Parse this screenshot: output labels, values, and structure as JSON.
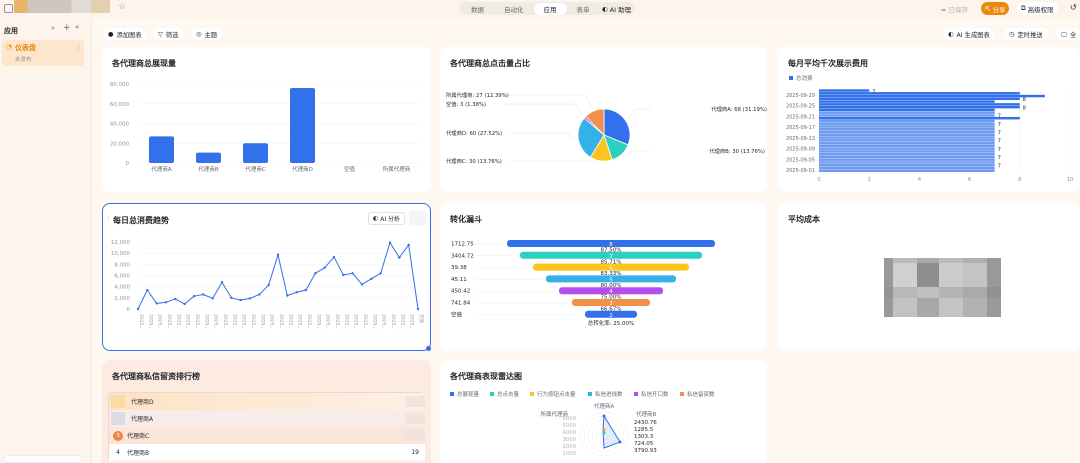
{
  "topbar": {
    "doc_title": "",
    "nav": [
      "数据",
      "自动化",
      "应用",
      "表单"
    ],
    "active_nav": "应用",
    "ai_assistant": "AI 助理",
    "saved": "已保存",
    "share": "分享",
    "advanced_permissions": "高级权限"
  },
  "sidebar": {
    "title": "应用",
    "items": [
      {
        "label": "仪表盘",
        "status": "未发布"
      }
    ]
  },
  "toolbar": {
    "add_chart": "添加图表",
    "filter": "筛选",
    "theme": "主题",
    "ai_generate": "AI 生成图表",
    "scheduled_push": "定时推送",
    "fullscreen": "全"
  },
  "colors": {
    "accent": "#3370eb",
    "share": "#e8890c",
    "page_bg": "#fef8f1"
  },
  "cards": {
    "impressions": "各代理商总展现量",
    "clicks": "各代理商总点击量占比",
    "cpm": "每月平均千次展示费用",
    "daily": "每日总消费趋势",
    "ai_analyze": "AI 分析",
    "funnel": "转化漏斗",
    "avg_cost": "平均成本",
    "ranking": "各代理商私信留资排行榜",
    "radar": "各代理商表现雷达图"
  },
  "chart_data": [
    {
      "type": "bar",
      "title": "各代理商总展现量",
      "categories": [
        "代理商A",
        "代理商B",
        "代理商C",
        "代理商D",
        "空值",
        "所属代理商"
      ],
      "values": [
        27000,
        10500,
        20000,
        76000,
        0,
        0
      ],
      "ylim": [
        0,
        80000
      ],
      "yticks": [
        "0",
        "20,000",
        "40,000",
        "60,000",
        "80,000"
      ],
      "grid": true
    },
    {
      "type": "pie",
      "title": "各代理商总点击量占比",
      "slices": [
        {
          "label": "代理商A: 68 (31.19%)",
          "value": 68,
          "color": "#3370eb"
        },
        {
          "label": "代理商B: 30 (13.76%)",
          "value": 30,
          "color": "#2ccfc0"
        },
        {
          "label": "代理商C: 30 (13.76%)",
          "value": 30,
          "color": "#fbc51d"
        },
        {
          "label": "代理商D: 60 (27.52%)",
          "value": 60,
          "color": "#35b0e8"
        },
        {
          "label": "空值: 3 (1.38%)",
          "value": 3,
          "color": "#b54ef0"
        },
        {
          "label": "所属代理商: 27 (12.39%)",
          "value": 27,
          "color": "#f0904a"
        }
      ]
    },
    {
      "type": "bar",
      "orientation": "horizontal",
      "title": "每月平均千次展示费用",
      "legend": "总消费",
      "yticks": [
        "2025-09-29",
        "2025-09-25",
        "2025-09-21",
        "2025-09-17",
        "2025-09-13",
        "2025-09-09",
        "2025-09-05",
        "2025-09-01"
      ],
      "xticks": [
        "0",
        "2",
        "4",
        "6",
        "8",
        "10"
      ],
      "xlim": [
        0,
        10
      ],
      "values": [
        2,
        8,
        9,
        8,
        7,
        8,
        8,
        7,
        7,
        7,
        8,
        7,
        7,
        7,
        7,
        7,
        7,
        7,
        7,
        7,
        7,
        7,
        7,
        7,
        7,
        7,
        7,
        7,
        7,
        7
      ]
    },
    {
      "type": "line",
      "title": "每日总消费趋势",
      "ylim": [
        0,
        12000
      ],
      "yticks": [
        "0",
        "2,000",
        "4,000",
        "6,000",
        "8,000",
        "10,000",
        "12,000"
      ],
      "xlabels_suffix": "2025...",
      "last_label": "空值",
      "values": [
        0,
        3400,
        1000,
        1200,
        1800,
        900,
        2300,
        2600,
        1900,
        4800,
        2000,
        1600,
        1900,
        2600,
        4300,
        9700,
        2400,
        3000,
        3400,
        6400,
        7400,
        9300,
        6100,
        6400,
        4400,
        5400,
        6400,
        11900,
        9200,
        11500,
        0
      ],
      "grid": true
    },
    {
      "type": "funnel",
      "title": "转化漏斗",
      "stages": [
        {
          "label": "1712.75",
          "value": 8,
          "color": "#3370eb"
        },
        {
          "label": "3404.72",
          "value": 7,
          "color": "#2ccfc0"
        },
        {
          "label": "39.38",
          "value": 6,
          "color": "#fbc51d"
        },
        {
          "label": "45.11",
          "value": 5,
          "color": "#35b0e8"
        },
        {
          "label": "450.42",
          "value": 4,
          "color": "#b54ef0"
        },
        {
          "label": "741.84",
          "value": 3,
          "color": "#f0904a"
        },
        {
          "label": "空值",
          "value": 2,
          "color": "#3370eb"
        }
      ],
      "rates": [
        "87.50%",
        "85.71%",
        "83.33%",
        "80.00%",
        "75.00%",
        "66.67%"
      ],
      "total": "总转化率: 25.00%"
    },
    {
      "type": "radar",
      "title": "各代理商表现雷达图",
      "legend": [
        {
          "name": "总展现量",
          "color": "#3370eb"
        },
        {
          "name": "总点击量",
          "color": "#2ccfc0"
        },
        {
          "name": "行为按钮点击量",
          "color": "#fbc51d"
        },
        {
          "name": "私信进线数",
          "color": "#35b0e8"
        },
        {
          "name": "私信开口数",
          "color": "#b54ef0"
        },
        {
          "name": "私信留资数",
          "color": "#f0904a"
        }
      ],
      "axes": [
        "代理商A",
        "代理商B",
        "所属代理商"
      ],
      "rticks": [
        "6000",
        "5000",
        "4000",
        "3000",
        "2000",
        "1000"
      ],
      "value_labels": [
        "2430.76",
        "1285.5",
        "1303.3",
        "724.05",
        "3790.93"
      ]
    }
  ],
  "ranking": {
    "rows": [
      {
        "rank": "1",
        "name": "代理商D",
        "value": ""
      },
      {
        "rank": "2",
        "name": "代理商A",
        "value": ""
      },
      {
        "rank": "3",
        "name": "代理商C",
        "value": ""
      },
      {
        "rank": "4",
        "name": "代理商B",
        "value": "19"
      }
    ]
  }
}
